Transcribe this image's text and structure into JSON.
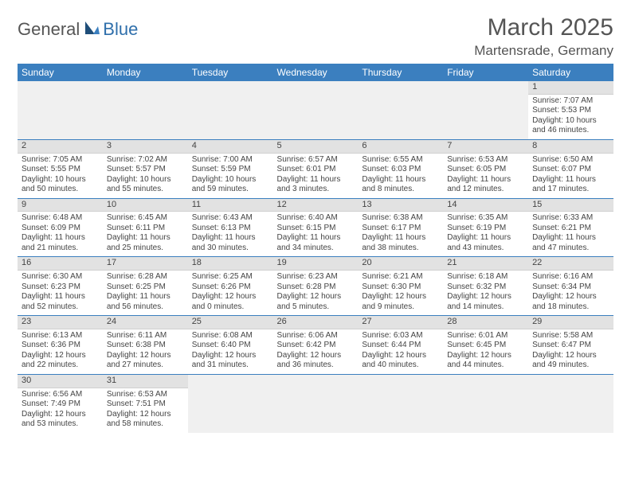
{
  "logo": {
    "general": "General",
    "blue": "Blue"
  },
  "title": "March 2025",
  "location": "Martensrade, Germany",
  "colors": {
    "header_bg": "#3b7fbf",
    "header_text": "#ffffff",
    "daybar_bg": "#e2e2e2",
    "blank_bg": "#f0f0f0",
    "border": "#3b7fbf",
    "text": "#444444",
    "logo_blue": "#2f6fab",
    "background": "#ffffff"
  },
  "weekdays": [
    "Sunday",
    "Monday",
    "Tuesday",
    "Wednesday",
    "Thursday",
    "Friday",
    "Saturday"
  ],
  "grid": [
    [
      null,
      null,
      null,
      null,
      null,
      null,
      {
        "n": "1",
        "sr": "7:07 AM",
        "ss": "5:53 PM",
        "dl": "10 hours and 46 minutes."
      }
    ],
    [
      {
        "n": "2",
        "sr": "7:05 AM",
        "ss": "5:55 PM",
        "dl": "10 hours and 50 minutes."
      },
      {
        "n": "3",
        "sr": "7:02 AM",
        "ss": "5:57 PM",
        "dl": "10 hours and 55 minutes."
      },
      {
        "n": "4",
        "sr": "7:00 AM",
        "ss": "5:59 PM",
        "dl": "10 hours and 59 minutes."
      },
      {
        "n": "5",
        "sr": "6:57 AM",
        "ss": "6:01 PM",
        "dl": "11 hours and 3 minutes."
      },
      {
        "n": "6",
        "sr": "6:55 AM",
        "ss": "6:03 PM",
        "dl": "11 hours and 8 minutes."
      },
      {
        "n": "7",
        "sr": "6:53 AM",
        "ss": "6:05 PM",
        "dl": "11 hours and 12 minutes."
      },
      {
        "n": "8",
        "sr": "6:50 AM",
        "ss": "6:07 PM",
        "dl": "11 hours and 17 minutes."
      }
    ],
    [
      {
        "n": "9",
        "sr": "6:48 AM",
        "ss": "6:09 PM",
        "dl": "11 hours and 21 minutes."
      },
      {
        "n": "10",
        "sr": "6:45 AM",
        "ss": "6:11 PM",
        "dl": "11 hours and 25 minutes."
      },
      {
        "n": "11",
        "sr": "6:43 AM",
        "ss": "6:13 PM",
        "dl": "11 hours and 30 minutes."
      },
      {
        "n": "12",
        "sr": "6:40 AM",
        "ss": "6:15 PM",
        "dl": "11 hours and 34 minutes."
      },
      {
        "n": "13",
        "sr": "6:38 AM",
        "ss": "6:17 PM",
        "dl": "11 hours and 38 minutes."
      },
      {
        "n": "14",
        "sr": "6:35 AM",
        "ss": "6:19 PM",
        "dl": "11 hours and 43 minutes."
      },
      {
        "n": "15",
        "sr": "6:33 AM",
        "ss": "6:21 PM",
        "dl": "11 hours and 47 minutes."
      }
    ],
    [
      {
        "n": "16",
        "sr": "6:30 AM",
        "ss": "6:23 PM",
        "dl": "11 hours and 52 minutes."
      },
      {
        "n": "17",
        "sr": "6:28 AM",
        "ss": "6:25 PM",
        "dl": "11 hours and 56 minutes."
      },
      {
        "n": "18",
        "sr": "6:25 AM",
        "ss": "6:26 PM",
        "dl": "12 hours and 0 minutes."
      },
      {
        "n": "19",
        "sr": "6:23 AM",
        "ss": "6:28 PM",
        "dl": "12 hours and 5 minutes."
      },
      {
        "n": "20",
        "sr": "6:21 AM",
        "ss": "6:30 PM",
        "dl": "12 hours and 9 minutes."
      },
      {
        "n": "21",
        "sr": "6:18 AM",
        "ss": "6:32 PM",
        "dl": "12 hours and 14 minutes."
      },
      {
        "n": "22",
        "sr": "6:16 AM",
        "ss": "6:34 PM",
        "dl": "12 hours and 18 minutes."
      }
    ],
    [
      {
        "n": "23",
        "sr": "6:13 AM",
        "ss": "6:36 PM",
        "dl": "12 hours and 22 minutes."
      },
      {
        "n": "24",
        "sr": "6:11 AM",
        "ss": "6:38 PM",
        "dl": "12 hours and 27 minutes."
      },
      {
        "n": "25",
        "sr": "6:08 AM",
        "ss": "6:40 PM",
        "dl": "12 hours and 31 minutes."
      },
      {
        "n": "26",
        "sr": "6:06 AM",
        "ss": "6:42 PM",
        "dl": "12 hours and 36 minutes."
      },
      {
        "n": "27",
        "sr": "6:03 AM",
        "ss": "6:44 PM",
        "dl": "12 hours and 40 minutes."
      },
      {
        "n": "28",
        "sr": "6:01 AM",
        "ss": "6:45 PM",
        "dl": "12 hours and 44 minutes."
      },
      {
        "n": "29",
        "sr": "5:58 AM",
        "ss": "6:47 PM",
        "dl": "12 hours and 49 minutes."
      }
    ],
    [
      {
        "n": "30",
        "sr": "6:56 AM",
        "ss": "7:49 PM",
        "dl": "12 hours and 53 minutes."
      },
      {
        "n": "31",
        "sr": "6:53 AM",
        "ss": "7:51 PM",
        "dl": "12 hours and 58 minutes."
      },
      null,
      null,
      null,
      null,
      null
    ]
  ],
  "labels": {
    "sunrise": "Sunrise:",
    "sunset": "Sunset:",
    "daylight": "Daylight:"
  }
}
